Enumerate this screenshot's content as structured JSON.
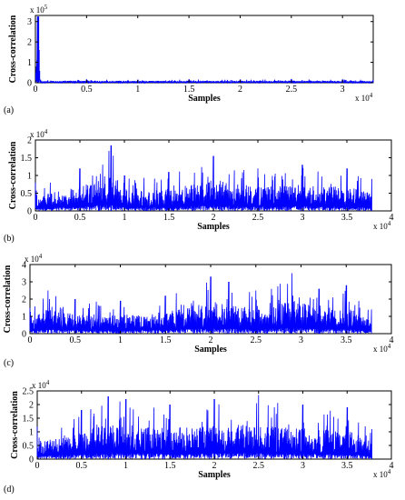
{
  "panel_labels": [
    "(a)",
    "(b)",
    "(c)",
    "(d)"
  ],
  "chart_data": [
    {
      "type": "line",
      "xlabel": "Samples",
      "ylabel": "Cross-correlation",
      "x_exponent_label": "x 10",
      "x_exponent_power": "4",
      "y_exponent_label": "x 10",
      "y_exponent_power": "5",
      "xlim": [
        0,
        3.3
      ],
      "ylim": [
        0,
        3.3
      ],
      "x_ticks": [
        "0",
        "0.5",
        "1",
        "1.5",
        "2",
        "2.5",
        "3"
      ],
      "y_ticks": [
        "0",
        "1",
        "2",
        "3"
      ],
      "series": [
        {
          "color": "#0000ff",
          "x": [
            0,
            0.02,
            0.03,
            0.05,
            0.5,
            1,
            1.5,
            2,
            2.5,
            3,
            3.3
          ],
          "y": [
            0.15,
            3.25,
            3.25,
            0.15,
            0.18,
            0.15,
            0.17,
            0.16,
            0.18,
            0.16,
            0.15
          ]
        }
      ]
    },
    {
      "type": "line",
      "xlabel": "Samples",
      "ylabel": "Cross-correlation",
      "x_exponent_label": "x 10",
      "x_exponent_power": "4",
      "y_exponent_label": "x 10",
      "y_exponent_power": "4",
      "xlim": [
        0,
        4
      ],
      "ylim": [
        0,
        2
      ],
      "x_ticks": [
        "0",
        "0.5",
        "1",
        "1.5",
        "2",
        "2.5",
        "3",
        "3.5",
        "4"
      ],
      "y_ticks": [
        "0",
        "0.5",
        "1",
        "1.5",
        "2"
      ],
      "series": [
        {
          "color": "#0000ff",
          "x": [
            0,
            0.5,
            0.85,
            1.0,
            1.5,
            2.0,
            2.5,
            3.0,
            3.5,
            3.78
          ],
          "y": [
            0.8,
            1.2,
            1.85,
            1.0,
            1.1,
            1.55,
            1.2,
            1.3,
            1.2,
            0.9
          ]
        }
      ]
    },
    {
      "type": "line",
      "xlabel": "Samples",
      "ylabel": "Cross-correlation",
      "x_exponent_label": "x 10",
      "x_exponent_power": "4",
      "y_exponent_label": "x 10",
      "y_exponent_power": "4",
      "xlim": [
        0,
        4
      ],
      "ylim": [
        0,
        4
      ],
      "x_ticks": [
        "0",
        "0.5",
        "1",
        "1.5",
        "2",
        "2.5",
        "3",
        "3.5",
        "4"
      ],
      "y_ticks": [
        "0",
        "1",
        "2",
        "3",
        "4"
      ],
      "series": [
        {
          "color": "#0000ff",
          "x": [
            0,
            0.2,
            0.5,
            1.0,
            1.5,
            2.0,
            2.2,
            2.5,
            2.9,
            3.2,
            3.5,
            3.78
          ],
          "y": [
            1.5,
            2.5,
            2.0,
            1.9,
            2.2,
            3.3,
            3.0,
            2.5,
            3.5,
            2.6,
            2.8,
            1.4
          ]
        }
      ]
    },
    {
      "type": "line",
      "xlabel": "Samples",
      "ylabel": "Cross-correlation",
      "x_exponent_label": "x 10",
      "x_exponent_power": "4",
      "y_exponent_label": "x 10",
      "y_exponent_power": "4",
      "xlim": [
        0,
        4
      ],
      "ylim": [
        0,
        2.5
      ],
      "x_ticks": [
        "0",
        "0.5",
        "1",
        "1.5",
        "2",
        "2.5",
        "3",
        "3.5",
        "4"
      ],
      "y_ticks": [
        "0",
        "0.5",
        "1",
        "1.5",
        "2",
        "2.5"
      ],
      "series": [
        {
          "color": "#0000ff",
          "x": [
            0,
            0.5,
            0.8,
            1.0,
            1.5,
            2.0,
            2.5,
            3.0,
            3.5,
            3.78
          ],
          "y": [
            1.2,
            1.8,
            2.3,
            2.2,
            2.0,
            2.2,
            2.35,
            2.0,
            1.9,
            1.1
          ]
        }
      ]
    }
  ]
}
